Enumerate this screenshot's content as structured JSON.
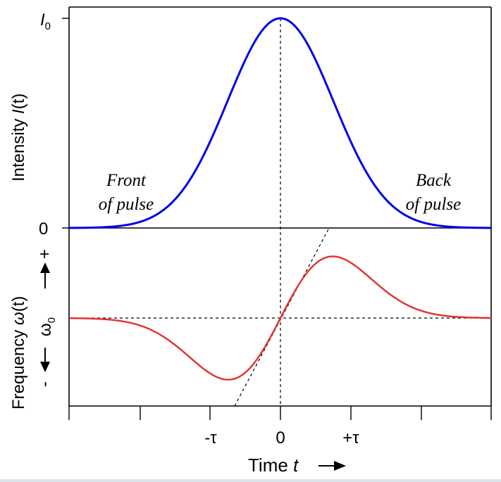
{
  "chart_data": [
    {
      "type": "line",
      "panel": "intensity",
      "ylabel_prefix": "Intensity ",
      "ylabel_var": "I",
      "ylabel_arg": "(t)",
      "yticks": {
        "top_main": "I",
        "top_sub": "0",
        "bottom": "0"
      },
      "ylim": [
        0,
        1
      ],
      "xlim": [
        -3,
        3
      ],
      "series": [
        {
          "function": "I0 * exp(-t^2 / tau^2)",
          "peak_x": 0,
          "peak_y": 1,
          "color": "#0000e6"
        }
      ],
      "annotations": {
        "front": [
          "Front",
          "of pulse"
        ],
        "back": [
          "Back",
          "of pulse"
        ]
      }
    },
    {
      "type": "line",
      "panel": "frequency",
      "ylabel_prefix": "Frequency ",
      "ylabel_var": "ω",
      "ylabel_arg": "(t)",
      "yticks": {
        "plus": "+",
        "center_main": "ω",
        "center_sub": "0",
        "minus": "-"
      },
      "ylim": [
        -1.3,
        1.1
      ],
      "xlim": [
        -3,
        3
      ],
      "series": [
        {
          "function": "omega0 + A * t * exp(-t^2 / tau^2)",
          "extrema": [
            [
              -0.7,
              -0.9
            ],
            [
              0.7,
              0.9
            ]
          ],
          "color": "#e03030"
        }
      ],
      "reference_lines": [
        "vertical dashed at t = 0",
        "horizontal dashed at ω0",
        "dashed tangent through origin"
      ],
      "xticks": [
        "-τ",
        "0",
        "+τ"
      ],
      "xlabel_prefix": "Time ",
      "xlabel_var": "t"
    }
  ]
}
